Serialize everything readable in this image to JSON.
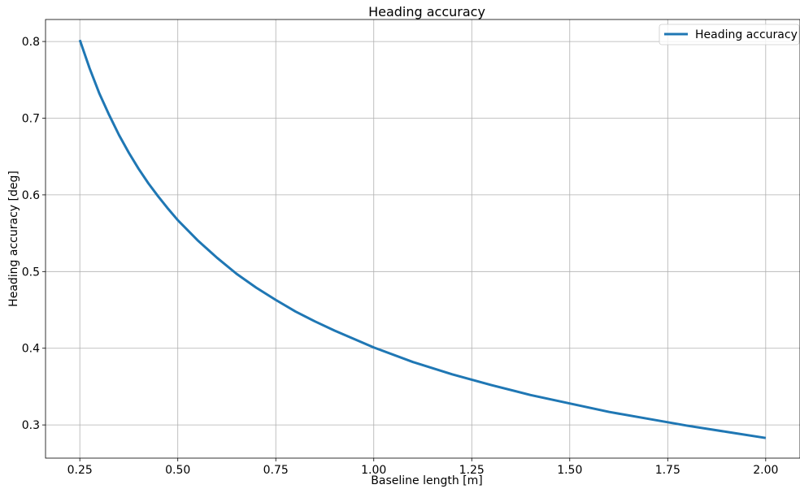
{
  "chart_data": {
    "type": "line",
    "title": "Heading accuracy",
    "xlabel": "Baseline length [m]",
    "ylabel": "Heading accuracy [deg]",
    "xlim": [
      0.1625,
      2.0875
    ],
    "ylim": [
      0.2567,
      0.8287
    ],
    "x_ticks": [
      {
        "value": 0.25,
        "label": "0.25"
      },
      {
        "value": 0.5,
        "label": "0.50"
      },
      {
        "value": 0.75,
        "label": "0.75"
      },
      {
        "value": 1.0,
        "label": "1.00"
      },
      {
        "value": 1.25,
        "label": "1.25"
      },
      {
        "value": 1.5,
        "label": "1.50"
      },
      {
        "value": 1.75,
        "label": "1.75"
      },
      {
        "value": 2.0,
        "label": "2.00"
      }
    ],
    "y_ticks": [
      {
        "value": 0.3,
        "label": "0.3"
      },
      {
        "value": 0.4,
        "label": "0.4"
      },
      {
        "value": 0.5,
        "label": "0.5"
      },
      {
        "value": 0.6,
        "label": "0.6"
      },
      {
        "value": 0.7,
        "label": "0.7"
      },
      {
        "value": 0.8,
        "label": "0.8"
      }
    ],
    "grid": true,
    "legend_position": "top-right",
    "series": [
      {
        "name": "Heading accuracy",
        "color": "#1f77b4",
        "x": [
          0.25,
          0.275,
          0.3,
          0.325,
          0.35,
          0.375,
          0.4,
          0.425,
          0.45,
          0.475,
          0.5,
          0.55,
          0.6,
          0.65,
          0.7,
          0.75,
          0.8,
          0.85,
          0.9,
          0.95,
          1.0,
          1.1,
          1.2,
          1.3,
          1.4,
          1.5,
          1.6,
          1.7,
          1.8,
          1.9,
          2.0
        ],
        "y": [
          0.802,
          0.765,
          0.732,
          0.704,
          0.678,
          0.655,
          0.634,
          0.615,
          0.598,
          0.582,
          0.567,
          0.541,
          0.518,
          0.497,
          0.479,
          0.463,
          0.448,
          0.435,
          0.423,
          0.412,
          0.401,
          0.382,
          0.366,
          0.352,
          0.339,
          0.328,
          0.317,
          0.308,
          0.299,
          0.291,
          0.283
        ]
      }
    ]
  }
}
